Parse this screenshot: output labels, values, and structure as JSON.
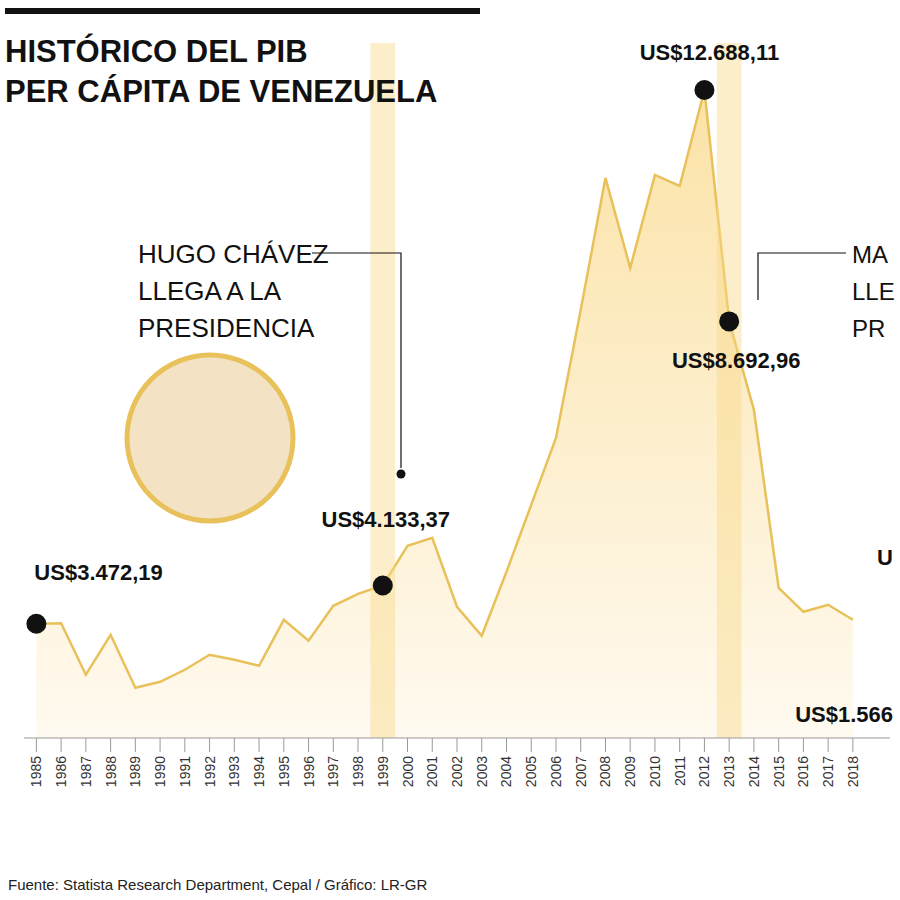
{
  "chart_data": {
    "type": "area",
    "title": "HISTÓRICO DEL PIB\nPER CÁPITA DE VENEZUELA",
    "source": "Fuente: Statista Research Department, Cepal / Gráfico: LR-GR",
    "x": [
      1985,
      1986,
      1987,
      1988,
      1989,
      1990,
      1991,
      1992,
      1993,
      1994,
      1995,
      1996,
      1997,
      1998,
      1999,
      2000,
      2001,
      2002,
      2003,
      2004,
      2005,
      2006,
      2007,
      2008,
      2009,
      2010,
      2011,
      2012,
      2013,
      2014,
      2015,
      2016,
      2017,
      2018
    ],
    "values": [
      3472.19,
      3480,
      2592,
      3282,
      2367,
      2471,
      2678,
      2937,
      2851,
      2747,
      3541,
      3179,
      3783,
      3990,
      4133.37,
      4818,
      4956,
      3766,
      3265,
      4370,
      5526,
      6683,
      8892,
      11170,
      9617,
      11222,
      11032,
      12688.11,
      8692.96,
      7166,
      4093,
      3679,
      3800,
      3541
    ],
    "color": "#e8c15a",
    "xlim": [
      1984.5,
      2019.5
    ],
    "xticks": [
      1985,
      1986,
      1987,
      1988,
      1989,
      1990,
      1991,
      1992,
      1993,
      1994,
      1995,
      1996,
      1997,
      1998,
      1999,
      2000,
      2001,
      2002,
      2003,
      2004,
      2005,
      2006,
      2007,
      2008,
      2009,
      2010,
      2011,
      2012,
      2013,
      2014,
      2015,
      2016,
      2017,
      2018
    ],
    "ylim": [
      1500,
      13500
    ],
    "tick_labels": "x",
    "grid": false,
    "highlights": [
      1999,
      2013
    ],
    "point_labels": [
      {
        "x": 1985,
        "value": 3472.19,
        "label": "US$3.472,19"
      },
      {
        "x": 1999,
        "value": 4133.37,
        "label": "US$4.133,37"
      },
      {
        "x": 2012,
        "value": 12688.11,
        "label": "US$12.688,11"
      },
      {
        "x": 2013,
        "value": 8692.96,
        "label": "US$8.692,96"
      }
    ],
    "annotations": [
      {
        "text": "HUGO CHÁVEZ\nLLEGA A LA\nPRESIDENCIA"
      },
      {
        "text": "MA\nLLE\nPR"
      },
      {
        "text": "US$1.566"
      },
      {
        "text": "U"
      }
    ]
  }
}
